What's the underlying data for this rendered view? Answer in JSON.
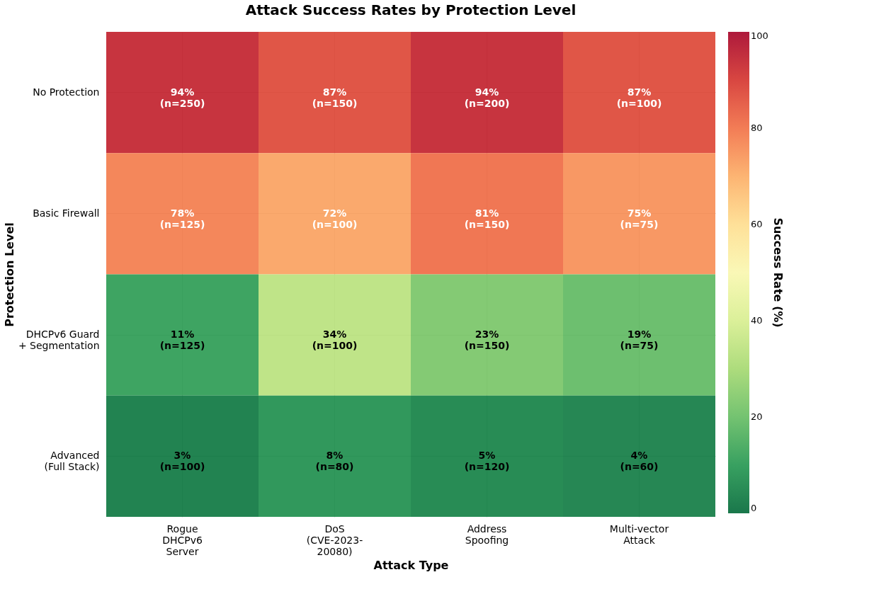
{
  "chart_data": {
    "type": "heatmap",
    "title": "Attack Success Rates by Protection Level",
    "xlabel": "Attack Type",
    "ylabel": "Protection Level",
    "clabel": "Success Rate (%)",
    "categories": [
      "Rogue\nDHCPv6\nServer",
      "DoS\n(CVE-2023-\n20080)",
      "Address\nSpoofing",
      "Multi-vector\nAttack"
    ],
    "y_categories": [
      "No Protection",
      "Basic Firewall",
      "DHCPv6 Guard\n+ Segmentation",
      "Advanced\n(Full Stack)"
    ],
    "cells": [
      [
        94,
        87,
        94,
        87
      ],
      [
        78,
        72,
        81,
        75
      ],
      [
        11,
        34,
        23,
        19
      ],
      [
        3,
        8,
        5,
        4
      ]
    ],
    "cell_labels": [
      [
        "94%\n(n=250)",
        "87%\n(n=150)",
        "94%\n(n=200)",
        "87%\n(n=100)"
      ],
      [
        "78%\n(n=125)",
        "72%\n(n=100)",
        "81%\n(n=150)",
        "75%\n(n=75)"
      ],
      [
        "11%\n(n=125)",
        "34%\n(n=100)",
        "23%\n(n=150)",
        "19%\n(n=75)"
      ],
      [
        "3%\n(n=100)",
        "8%\n(n=80)",
        "5%\n(n=120)",
        "4%\n(n=60)"
      ]
    ],
    "clim": [
      0,
      100
    ],
    "cticks": [
      0,
      20,
      40,
      60,
      80,
      100
    ],
    "grid": true
  }
}
